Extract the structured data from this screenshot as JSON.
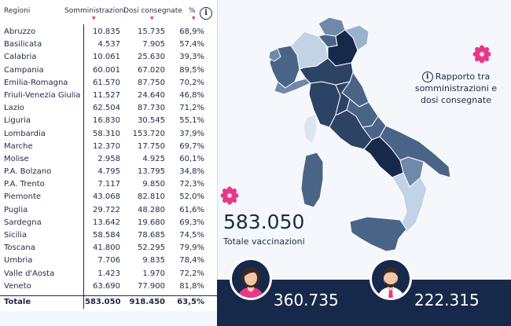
{
  "table": {
    "headers": {
      "region": "Regioni",
      "administered": "Somministrazioni",
      "delivered": "Dosi consegnate",
      "percent": "%"
    },
    "sort_marker": "▼",
    "info_icon": "i",
    "rows": [
      {
        "region": "Abruzzo",
        "administered": "10.835",
        "delivered": "15.735",
        "percent": "68,9%"
      },
      {
        "region": "Basilicata",
        "administered": "4.537",
        "delivered": "7.905",
        "percent": "57,4%"
      },
      {
        "region": "Calabria",
        "administered": "10.061",
        "delivered": "25.630",
        "percent": "39,3%"
      },
      {
        "region": "Campania",
        "administered": "60.001",
        "delivered": "67.020",
        "percent": "89,5%"
      },
      {
        "region": "Emilia-Romagna",
        "administered": "61.570",
        "delivered": "87.750",
        "percent": "70,2%"
      },
      {
        "region": "Friuli-Venezia Giulia",
        "administered": "11.527",
        "delivered": "24.640",
        "percent": "46,8%"
      },
      {
        "region": "Lazio",
        "administered": "62.504",
        "delivered": "87.730",
        "percent": "71,2%"
      },
      {
        "region": "Liguria",
        "administered": "16.830",
        "delivered": "30.545",
        "percent": "55,1%"
      },
      {
        "region": "Lombardia",
        "administered": "58.310",
        "delivered": "153.720",
        "percent": "37,9%"
      },
      {
        "region": "Marche",
        "administered": "12.370",
        "delivered": "17.750",
        "percent": "69,7%"
      },
      {
        "region": "Molise",
        "administered": "2.958",
        "delivered": "4.925",
        "percent": "60,1%"
      },
      {
        "region": "P.A. Bolzano",
        "administered": "4.795",
        "delivered": "13.795",
        "percent": "34,8%"
      },
      {
        "region": "P.A. Trento",
        "administered": "7.117",
        "delivered": "9.850",
        "percent": "72,3%"
      },
      {
        "region": "Piemonte",
        "administered": "43.068",
        "delivered": "82.810",
        "percent": "52,0%"
      },
      {
        "region": "Puglia",
        "administered": "29.722",
        "delivered": "48.280",
        "percent": "61,6%"
      },
      {
        "region": "Sardegna",
        "administered": "13.642",
        "delivered": "19.680",
        "percent": "69,3%"
      },
      {
        "region": "Sicilia",
        "administered": "58.584",
        "delivered": "78.685",
        "percent": "74,5%"
      },
      {
        "region": "Toscana",
        "administered": "41.800",
        "delivered": "52.295",
        "percent": "79,9%"
      },
      {
        "region": "Umbria",
        "administered": "7.706",
        "delivered": "9.835",
        "percent": "78,4%"
      },
      {
        "region": "Valle d'Aosta",
        "administered": "1.423",
        "delivered": "1.970",
        "percent": "72,2%"
      },
      {
        "region": "Veneto",
        "administered": "63.690",
        "delivered": "77.900",
        "percent": "81,8%"
      }
    ],
    "total": {
      "region": "Totale",
      "administered": "583.050",
      "delivered": "918.450",
      "percent": "63,5%"
    }
  },
  "map": {
    "note_icon": "i",
    "note_line1": "Rapporto tra",
    "note_line2": "somministrazioni e",
    "note_line3": "dosi consegnate",
    "shades": {
      "darkest": "#17294a",
      "dark": "#2c4366",
      "mid": "#4a6488",
      "light": "#6f89aa",
      "lighter": "#9bb0ca",
      "palest": "#c3d3e6"
    }
  },
  "totals": {
    "value": "583.050",
    "label": "Totale vaccinazioni",
    "female_count": "360.735",
    "male_count": "222.315"
  },
  "colors": {
    "navy": "#17294a",
    "panel_bg": "#f4f7fb",
    "flower": "#e8388a",
    "sort_marker": "#d23c8c"
  },
  "icons": {
    "info": "info-icon",
    "flower": "flower-icon",
    "female": "female-avatar-icon",
    "male": "male-avatar-icon"
  }
}
